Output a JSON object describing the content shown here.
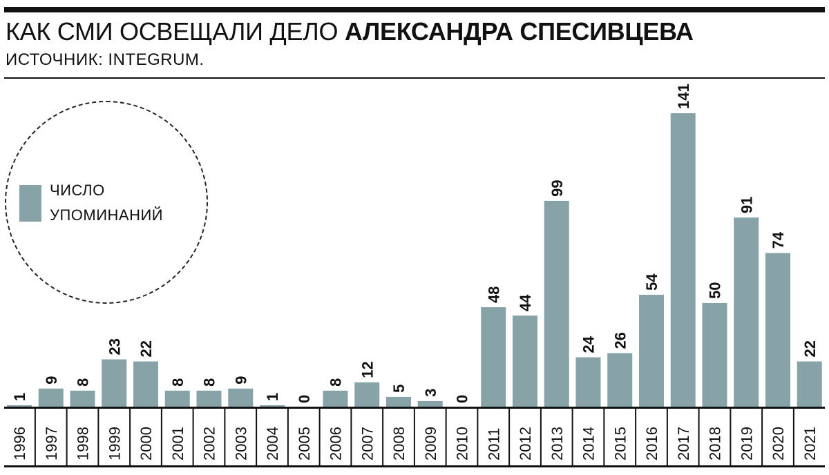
{
  "header": {
    "title_regular": "КАК СМИ ОСВЕЩАЛИ ДЕЛО ",
    "title_bold": "АЛЕКСАНДРА СПЕСИВЦЕВА",
    "subtitle": "ИСТОЧНИК: INTEGRUM."
  },
  "legend": {
    "line1": "ЧИСЛО",
    "line2": "УПОМИНАНИЙ",
    "color": "#87a3a8"
  },
  "chart_data": {
    "type": "bar",
    "title": "КАК СМИ ОСВЕЩАЛИ ДЕЛО АЛЕКСАНДРА СПЕСИВЦЕВА",
    "categories": [
      "1996",
      "1997",
      "1998",
      "1999",
      "2000",
      "2001",
      "2002",
      "2003",
      "2004",
      "2005",
      "2006",
      "2007",
      "2008",
      "2009",
      "2010",
      "2011",
      "2012",
      "2013",
      "2014",
      "2015",
      "2016",
      "2017",
      "2018",
      "2019",
      "2020",
      "2021"
    ],
    "series": [
      {
        "name": "ЧИСЛО УПОМИНАНИЙ",
        "values": [
          1,
          9,
          8,
          23,
          22,
          8,
          8,
          9,
          1,
          0,
          8,
          12,
          5,
          3,
          0,
          48,
          44,
          99,
          24,
          26,
          54,
          141,
          50,
          91,
          74,
          22
        ]
      }
    ],
    "ylim": [
      0,
      141
    ],
    "bar_color": "#87a3a8",
    "data_labels": true,
    "grid": false,
    "legend_position": "left"
  }
}
